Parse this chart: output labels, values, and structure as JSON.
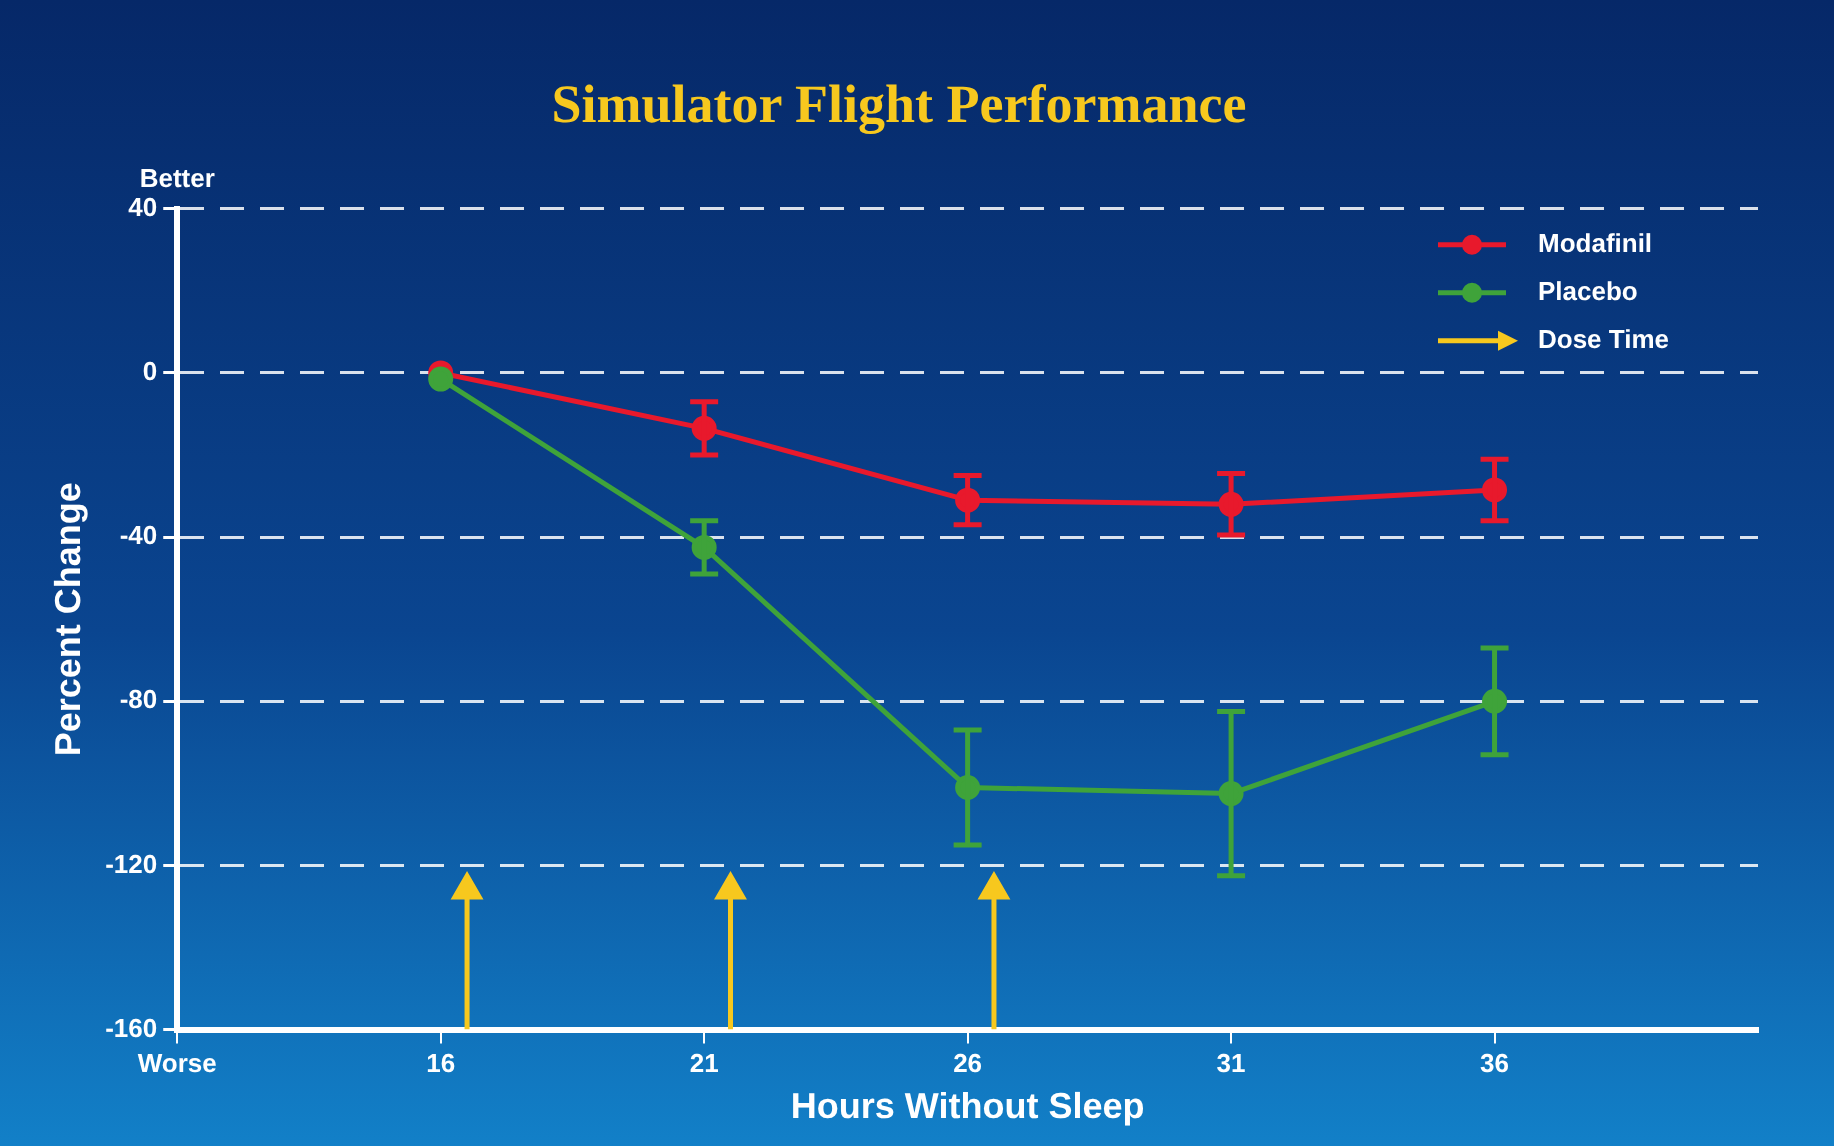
{
  "chart_data": {
    "type": "line",
    "title": "Simulator Flight Performance",
    "xlabel": "Hours Without Sleep",
    "ylabel": "Percent Change",
    "x": [
      16,
      21,
      26,
      31,
      36
    ],
    "series": [
      {
        "name": "Modafinil",
        "color": "#e8192c",
        "values": [
          0,
          -13.5,
          -31,
          -32,
          -28.5
        ],
        "errors": [
          null,
          6.5,
          6,
          7.5,
          7.5
        ]
      },
      {
        "name": "Placebo",
        "color": "#3fa33a",
        "values": [
          -1.5,
          -42.5,
          -101,
          -102.5,
          -80
        ],
        "errors": [
          null,
          6.5,
          14,
          20,
          13
        ]
      },
      {
        "name": "Dose Time",
        "color": "#f7c81e",
        "marker": "triangle",
        "x": [
          16.5,
          16.5,
          19,
          21.5,
          21.5,
          24,
          26.5,
          26.5
        ],
        "values": [
          -160,
          -126,
          null,
          -160,
          -126,
          null,
          -160,
          -126
        ]
      }
    ],
    "xlim": [
      11,
      41
    ],
    "xticks": [
      {
        "value": 11,
        "label": "Worse"
      },
      16,
      21,
      26,
      31,
      36
    ],
    "ylim": [
      -160,
      40
    ],
    "yticks": [
      -160,
      -120,
      -80,
      -40,
      0,
      40
    ],
    "annotations": [
      "Better"
    ],
    "grid": "y",
    "legend": "top right",
    "marker": "circle",
    "line_style": "solid"
  }
}
